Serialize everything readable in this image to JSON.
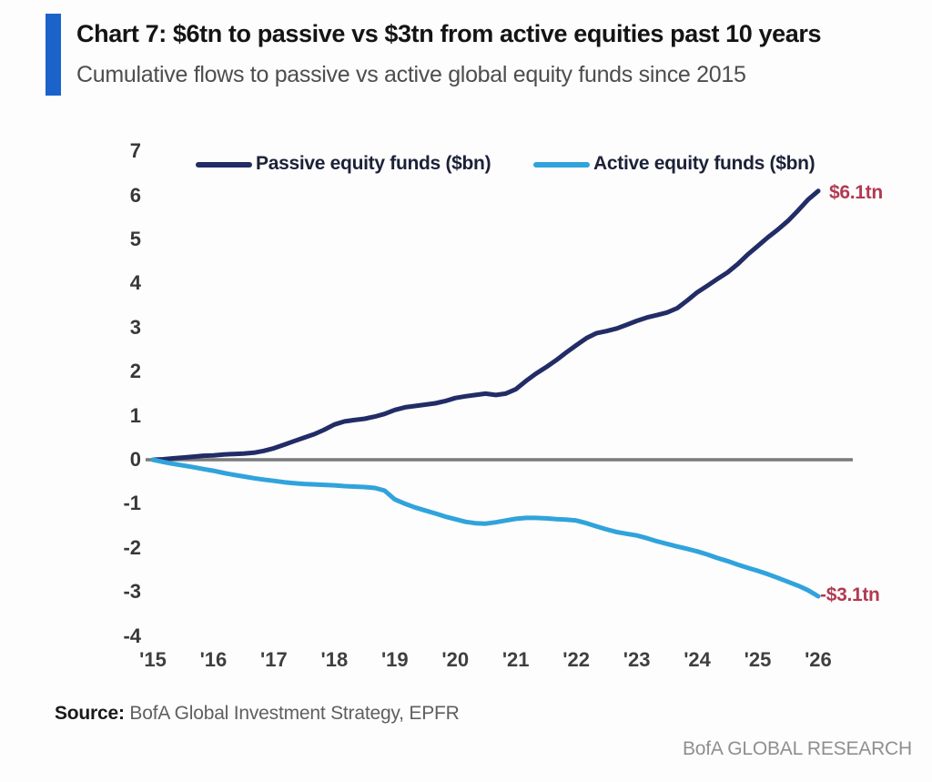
{
  "header": {
    "title": "Chart 7: $6tn to passive vs $3tn from active equities past 10 years",
    "subtitle": "Cumulative flows to passive vs active global equity funds since 2015",
    "accent_color": "#1b63cb"
  },
  "chart_data": {
    "type": "line",
    "title": "Chart 7: $6tn to passive vs $3tn from active equities past 10 years",
    "subtitle": "Cumulative flows to passive vs active global equity funds since 2015",
    "xlabel": "",
    "ylabel": "",
    "xlim": [
      2015,
      2026
    ],
    "ylim": [
      -4,
      7
    ],
    "grid": false,
    "legend_position": "top",
    "zero_line_color": "#7a7a7a",
    "annotation_color": "#b13a52",
    "y_ticks": [
      {
        "label": "7",
        "value": 7
      },
      {
        "label": "6",
        "value": 6
      },
      {
        "label": "5",
        "value": 5
      },
      {
        "label": "4",
        "value": 4
      },
      {
        "label": "3",
        "value": 3
      },
      {
        "label": "2",
        "value": 2
      },
      {
        "label": "1",
        "value": 1
      },
      {
        "label": "0",
        "value": 0
      },
      {
        "label": "-1",
        "value": -1
      },
      {
        "label": "-2",
        "value": -2
      },
      {
        "label": "-3",
        "value": -3
      },
      {
        "label": "-4",
        "value": -4
      }
    ],
    "x_ticks": [
      {
        "label": "'15",
        "year": 2015
      },
      {
        "label": "'16",
        "year": 2016
      },
      {
        "label": "'17",
        "year": 2017
      },
      {
        "label": "'18",
        "year": 2018
      },
      {
        "label": "'19",
        "year": 2019
      },
      {
        "label": "'20",
        "year": 2020
      },
      {
        "label": "'21",
        "year": 2021
      },
      {
        "label": "'22",
        "year": 2022
      },
      {
        "label": "'23",
        "year": 2023
      },
      {
        "label": "'24",
        "year": 2024
      },
      {
        "label": "'25",
        "year": 2025
      },
      {
        "label": "'26",
        "year": 2026
      }
    ],
    "series": [
      {
        "name": "Passive equity funds ($bn)",
        "color": "#222c66",
        "end_label": "$6.1tn",
        "points": [
          [
            2015.0,
            0.0
          ],
          [
            2015.17,
            0.01
          ],
          [
            2015.33,
            0.03
          ],
          [
            2015.5,
            0.05
          ],
          [
            2015.67,
            0.07
          ],
          [
            2015.83,
            0.09
          ],
          [
            2016.0,
            0.1
          ],
          [
            2016.17,
            0.12
          ],
          [
            2016.33,
            0.13
          ],
          [
            2016.5,
            0.14
          ],
          [
            2016.67,
            0.16
          ],
          [
            2016.83,
            0.2
          ],
          [
            2017.0,
            0.26
          ],
          [
            2017.17,
            0.34
          ],
          [
            2017.33,
            0.42
          ],
          [
            2017.5,
            0.5
          ],
          [
            2017.67,
            0.58
          ],
          [
            2017.83,
            0.68
          ],
          [
            2018.0,
            0.8
          ],
          [
            2018.17,
            0.87
          ],
          [
            2018.33,
            0.9
          ],
          [
            2018.5,
            0.93
          ],
          [
            2018.67,
            0.98
          ],
          [
            2018.83,
            1.04
          ],
          [
            2019.0,
            1.13
          ],
          [
            2019.17,
            1.19
          ],
          [
            2019.33,
            1.22
          ],
          [
            2019.5,
            1.25
          ],
          [
            2019.67,
            1.28
          ],
          [
            2019.83,
            1.33
          ],
          [
            2020.0,
            1.4
          ],
          [
            2020.17,
            1.44
          ],
          [
            2020.33,
            1.47
          ],
          [
            2020.5,
            1.5
          ],
          [
            2020.67,
            1.47
          ],
          [
            2020.83,
            1.5
          ],
          [
            2021.0,
            1.6
          ],
          [
            2021.17,
            1.79
          ],
          [
            2021.33,
            1.95
          ],
          [
            2021.5,
            2.1
          ],
          [
            2021.67,
            2.26
          ],
          [
            2021.83,
            2.43
          ],
          [
            2022.0,
            2.6
          ],
          [
            2022.17,
            2.76
          ],
          [
            2022.33,
            2.87
          ],
          [
            2022.5,
            2.92
          ],
          [
            2022.67,
            2.98
          ],
          [
            2022.83,
            3.06
          ],
          [
            2023.0,
            3.15
          ],
          [
            2023.17,
            3.23
          ],
          [
            2023.33,
            3.28
          ],
          [
            2023.5,
            3.34
          ],
          [
            2023.67,
            3.44
          ],
          [
            2023.83,
            3.61
          ],
          [
            2024.0,
            3.8
          ],
          [
            2024.17,
            3.95
          ],
          [
            2024.33,
            4.1
          ],
          [
            2024.5,
            4.25
          ],
          [
            2024.67,
            4.44
          ],
          [
            2024.83,
            4.65
          ],
          [
            2025.0,
            4.85
          ],
          [
            2025.17,
            5.05
          ],
          [
            2025.33,
            5.22
          ],
          [
            2025.5,
            5.42
          ],
          [
            2025.67,
            5.66
          ],
          [
            2025.83,
            5.9
          ],
          [
            2026.0,
            6.1
          ]
        ]
      },
      {
        "name": "Active equity funds ($bn)",
        "color": "#31a3dc",
        "end_label": "-$3.1tn",
        "points": [
          [
            2015.0,
            0.0
          ],
          [
            2015.17,
            -0.05
          ],
          [
            2015.33,
            -0.09
          ],
          [
            2015.5,
            -0.13
          ],
          [
            2015.67,
            -0.17
          ],
          [
            2015.83,
            -0.21
          ],
          [
            2016.0,
            -0.25
          ],
          [
            2016.17,
            -0.3
          ],
          [
            2016.33,
            -0.34
          ],
          [
            2016.5,
            -0.38
          ],
          [
            2016.67,
            -0.42
          ],
          [
            2016.83,
            -0.45
          ],
          [
            2017.0,
            -0.48
          ],
          [
            2017.17,
            -0.51
          ],
          [
            2017.33,
            -0.53
          ],
          [
            2017.5,
            -0.55
          ],
          [
            2017.67,
            -0.56
          ],
          [
            2017.83,
            -0.57
          ],
          [
            2018.0,
            -0.58
          ],
          [
            2018.17,
            -0.6
          ],
          [
            2018.33,
            -0.61
          ],
          [
            2018.5,
            -0.62
          ],
          [
            2018.67,
            -0.64
          ],
          [
            2018.83,
            -0.7
          ],
          [
            2019.0,
            -0.9
          ],
          [
            2019.17,
            -1.0
          ],
          [
            2019.33,
            -1.08
          ],
          [
            2019.5,
            -1.15
          ],
          [
            2019.67,
            -1.22
          ],
          [
            2019.83,
            -1.29
          ],
          [
            2020.0,
            -1.35
          ],
          [
            2020.17,
            -1.41
          ],
          [
            2020.33,
            -1.44
          ],
          [
            2020.5,
            -1.45
          ],
          [
            2020.67,
            -1.42
          ],
          [
            2020.83,
            -1.38
          ],
          [
            2021.0,
            -1.34
          ],
          [
            2021.17,
            -1.32
          ],
          [
            2021.33,
            -1.32
          ],
          [
            2021.5,
            -1.33
          ],
          [
            2021.67,
            -1.35
          ],
          [
            2021.83,
            -1.36
          ],
          [
            2022.0,
            -1.38
          ],
          [
            2022.17,
            -1.44
          ],
          [
            2022.33,
            -1.51
          ],
          [
            2022.5,
            -1.58
          ],
          [
            2022.67,
            -1.64
          ],
          [
            2022.83,
            -1.68
          ],
          [
            2023.0,
            -1.72
          ],
          [
            2023.17,
            -1.78
          ],
          [
            2023.33,
            -1.85
          ],
          [
            2023.5,
            -1.91
          ],
          [
            2023.67,
            -1.97
          ],
          [
            2023.83,
            -2.02
          ],
          [
            2024.0,
            -2.08
          ],
          [
            2024.17,
            -2.15
          ],
          [
            2024.33,
            -2.23
          ],
          [
            2024.5,
            -2.3
          ],
          [
            2024.67,
            -2.38
          ],
          [
            2024.83,
            -2.45
          ],
          [
            2025.0,
            -2.52
          ],
          [
            2025.17,
            -2.6
          ],
          [
            2025.33,
            -2.68
          ],
          [
            2025.5,
            -2.77
          ],
          [
            2025.67,
            -2.86
          ],
          [
            2025.83,
            -2.96
          ],
          [
            2026.0,
            -3.1
          ]
        ]
      }
    ]
  },
  "footer": {
    "source_label": "Source:",
    "source_text": " BofA Global Investment Strategy, EPFR",
    "branding": "BofA GLOBAL RESEARCH"
  }
}
